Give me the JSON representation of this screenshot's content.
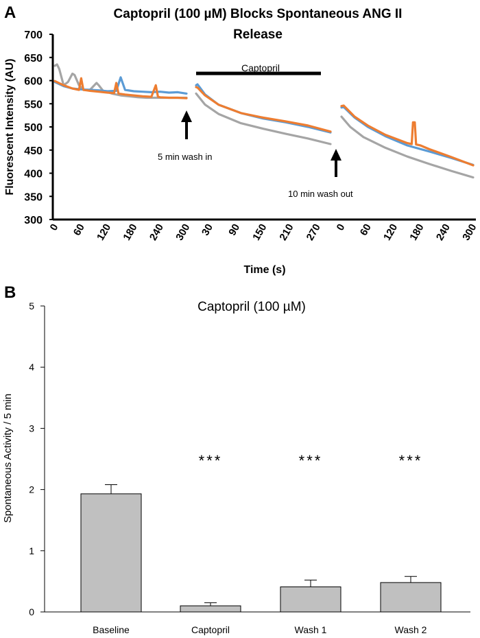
{
  "colors": {
    "blue": "#5b9bd5",
    "orange": "#ed7d31",
    "gray": "#a5a5a5",
    "bar_fill": "#c0c0c0"
  },
  "chart_data": [
    {
      "panel": "A",
      "type": "line",
      "title_line1": "Captopril (100 µM) Blocks Spontaneous ANG II",
      "title_line2": "Release",
      "xlabel": "Time (s)",
      "ylabel": "Fluorescent Intensity (AU)",
      "ylim": [
        300,
        700
      ],
      "y_ticks": [
        "700",
        "650",
        "600",
        "550",
        "500",
        "450",
        "400",
        "350",
        "300"
      ],
      "segments": [
        {
          "name": "baseline",
          "xlim": [
            0,
            300
          ],
          "tick_labels": [
            "0",
            "60",
            "120",
            "180",
            "240",
            "300"
          ],
          "series": [
            {
              "name": "blue",
              "x": [
                0,
                20,
                40,
                60,
                80,
                100,
                120,
                140,
                150,
                160,
                180,
                200,
                220,
                240,
                260,
                280,
                300
              ],
              "y": [
                597,
                588,
                583,
                581,
                580,
                579,
                577,
                578,
                607,
                580,
                577,
                576,
                575,
                576,
                574,
                575,
                572
              ]
            },
            {
              "name": "orange",
              "x": [
                0,
                20,
                40,
                55,
                60,
                65,
                80,
                100,
                120,
                135,
                140,
                145,
                160,
                180,
                200,
                220,
                230,
                235,
                240,
                260,
                280,
                300
              ],
              "y": [
                599,
                590,
                583,
                580,
                605,
                580,
                578,
                576,
                574,
                573,
                595,
                572,
                570,
                568,
                566,
                565,
                590,
                565,
                564,
                563,
                563,
                562
              ]
            },
            {
              "name": "gray",
              "x": [
                0,
                5,
                10,
                20,
                30,
                40,
                45,
                55,
                65,
                80,
                95,
                100,
                110,
                130,
                150,
                170,
                190,
                210,
                240,
                270,
                300
              ],
              "y": [
                632,
                635,
                625,
                590,
                597,
                615,
                612,
                590,
                580,
                580,
                595,
                590,
                578,
                572,
                568,
                566,
                564,
                563,
                563,
                563,
                563
              ]
            }
          ]
        },
        {
          "name": "captopril",
          "xlim": [
            0,
            300
          ],
          "tick_labels": [
            "30",
            "90",
            "150",
            "210",
            "270"
          ],
          "series": [
            {
              "name": "blue",
              "x": [
                0,
                3,
                20,
                50,
                100,
                150,
                200,
                250,
                300
              ],
              "y": [
                590,
                592,
                570,
                548,
                530,
                518,
                510,
                500,
                488
              ]
            },
            {
              "name": "orange",
              "x": [
                0,
                3,
                20,
                50,
                100,
                150,
                200,
                250,
                300
              ],
              "y": [
                586,
                585,
                568,
                548,
                530,
                520,
                512,
                503,
                490
              ]
            },
            {
              "name": "gray",
              "x": [
                0,
                20,
                50,
                100,
                150,
                200,
                250,
                300
              ],
              "y": [
                572,
                548,
                528,
                508,
                496,
                485,
                475,
                463
              ]
            }
          ]
        },
        {
          "name": "washout",
          "xlim": [
            0,
            300
          ],
          "tick_labels": [
            "0",
            "60",
            "120",
            "180",
            "240",
            "300"
          ],
          "series": [
            {
              "name": "blue",
              "x": [
                0,
                5,
                30,
                60,
                100,
                150,
                200,
                250,
                300
              ],
              "y": [
                542,
                543,
                520,
                500,
                480,
                460,
                447,
                433,
                418
              ]
            },
            {
              "name": "orange",
              "x": [
                0,
                5,
                30,
                60,
                100,
                150,
                160,
                163,
                167,
                170,
                180,
                200,
                250,
                300
              ],
              "y": [
                545,
                546,
                522,
                503,
                483,
                465,
                463,
                510,
                510,
                462,
                460,
                452,
                435,
                417
              ]
            },
            {
              "name": "gray",
              "x": [
                0,
                20,
                50,
                100,
                150,
                200,
                250,
                300
              ],
              "y": [
                522,
                500,
                478,
                455,
                436,
                420,
                405,
                391
              ]
            }
          ]
        }
      ],
      "annotations": {
        "captopril_bar_label": "Captopril",
        "wash_in": "5 min wash in",
        "wash_out": "10 min wash out"
      }
    },
    {
      "panel": "B",
      "type": "bar",
      "title": "Captopril (100 µM)",
      "ylabel": "Spontaneous Activity / 5 min",
      "ylim": [
        0,
        5
      ],
      "y_ticks": [
        "0",
        "1",
        "2",
        "3",
        "4",
        "5"
      ],
      "categories": [
        "Baseline",
        "Captopril",
        "Wash 1",
        "Wash 2"
      ],
      "values": [
        1.93,
        0.1,
        0.41,
        0.48
      ],
      "errors": [
        0.15,
        0.05,
        0.11,
        0.1
      ],
      "significance": [
        "",
        "***",
        "***",
        "***"
      ]
    }
  ]
}
